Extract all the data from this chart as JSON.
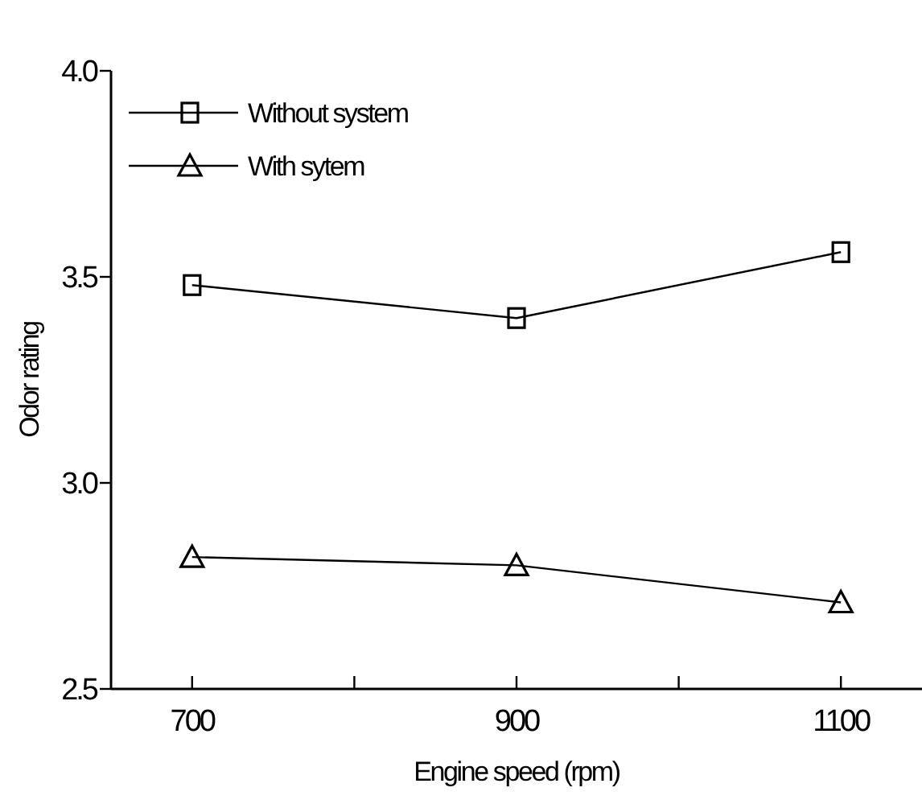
{
  "chart_data": {
    "type": "line",
    "xlabel": "Engine speed (rpm)",
    "ylabel": "Odor rating",
    "x": [
      700,
      900,
      1100
    ],
    "series": [
      {
        "name": "Without system",
        "color": "#000000",
        "marker": "square",
        "values": [
          3.48,
          3.4,
          3.56
        ]
      },
      {
        "name": "With sytem",
        "color": "#000000",
        "marker": "triangle",
        "values": [
          2.82,
          2.8,
          2.71
        ]
      }
    ],
    "xlim": [
      650,
      1150
    ],
    "xticks": [
      700,
      {
        "value": 800,
        "label": null
      },
      900,
      {
        "value": 1000,
        "label": null
      },
      1100
    ],
    "ylim": [
      2.5,
      4.0
    ],
    "yticks": [
      {
        "value": 2.5,
        "label": "2.5"
      },
      {
        "value": 3.0,
        "label": "3.0"
      },
      {
        "value": 3.5,
        "label": "3.5"
      },
      {
        "value": 4.0,
        "label": "4.0"
      }
    ],
    "grid": false,
    "legend": "top left",
    "line_style": "solid"
  }
}
